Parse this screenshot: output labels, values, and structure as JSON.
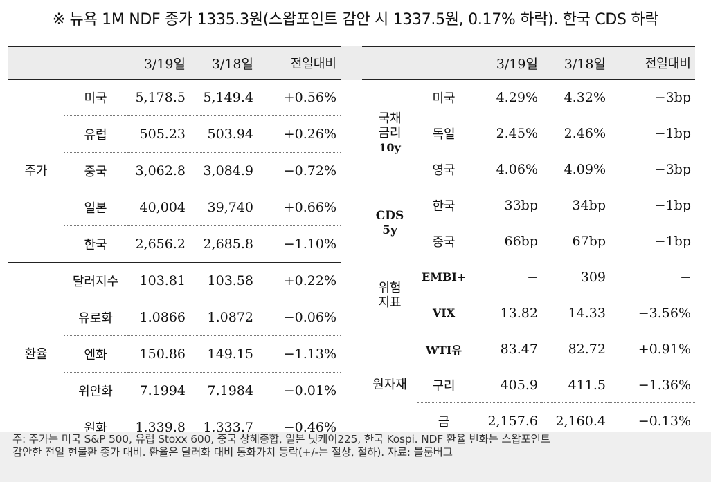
{
  "title": "※ 뉴욕 1M NDF 종가 1335.3원(스왑포인트 감안 시 1337.5원, 0.17% 하락). 한국 CDS 하락",
  "header": {
    "col1": "3/19일",
    "col2": "3/18일",
    "col3": "전일대비"
  },
  "left": {
    "stocks": {
      "label": "주가",
      "rows": [
        {
          "name": "미국",
          "d1": "5,178.5",
          "d2": "5,149.4",
          "chg": "+0.56%"
        },
        {
          "name": "유럽",
          "d1": "505.23",
          "d2": "503.94",
          "chg": "+0.26%"
        },
        {
          "name": "중국",
          "d1": "3,062.8",
          "d2": "3,084.9",
          "chg": "−0.72%"
        },
        {
          "name": "일본",
          "d1": "40,004",
          "d2": "39,740",
          "chg": "+0.66%"
        },
        {
          "name": "한국",
          "d1": "2,656.2",
          "d2": "2,685.8",
          "chg": "−1.10%"
        }
      ]
    },
    "fx": {
      "label": "환율",
      "rows": [
        {
          "name": "달러지수",
          "d1": "103.81",
          "d2": "103.58",
          "chg": "+0.22%"
        },
        {
          "name": "유로화",
          "d1": "1.0866",
          "d2": "1.0872",
          "chg": "−0.06%"
        },
        {
          "name": "엔화",
          "d1": "150.86",
          "d2": "149.15",
          "chg": "−1.13%"
        },
        {
          "name": "위안화",
          "d1": "7.1994",
          "d2": "7.1984",
          "chg": "−0.01%"
        },
        {
          "name": "원화",
          "d1": "1,339.8",
          "d2": "1,333.7",
          "chg": "−0.46%"
        }
      ]
    }
  },
  "right": {
    "bond": {
      "label_lines": [
        "국채",
        "금리",
        "10y"
      ],
      "rows": [
        {
          "name": "미국",
          "d1": "4.29%",
          "d2": "4.32%",
          "chg": "−3bp"
        },
        {
          "name": "독일",
          "d1": "2.45%",
          "d2": "2.46%",
          "chg": "−1bp"
        },
        {
          "name": "영국",
          "d1": "4.06%",
          "d2": "4.09%",
          "chg": "−3bp"
        }
      ]
    },
    "cds": {
      "label_lines": [
        "CDS",
        "5y"
      ],
      "rows": [
        {
          "name": "한국",
          "d1": "33bp",
          "d2": "34bp",
          "chg": "−1bp"
        },
        {
          "name": "중국",
          "d1": "66bp",
          "d2": "67bp",
          "chg": "−1bp"
        }
      ]
    },
    "risk": {
      "label_lines": [
        "위험",
        "지표"
      ],
      "rows": [
        {
          "name": "EMBI+",
          "d1": "−",
          "d2": "309",
          "chg": "−"
        },
        {
          "name": "VIX",
          "d1": "13.82",
          "d2": "14.33",
          "chg": "−3.56%"
        }
      ]
    },
    "commodity": {
      "label": "원자재",
      "rows": [
        {
          "name": "WTI유",
          "d1": "83.47",
          "d2": "82.72",
          "chg": "+0.91%"
        },
        {
          "name": "구리",
          "d1": "405.9",
          "d2": "411.5",
          "chg": "−1.36%"
        },
        {
          "name": "금",
          "d1": "2,157.6",
          "d2": "2,160.4",
          "chg": "−0.13%"
        }
      ]
    }
  },
  "footnote": {
    "line1": "주: 주가는 미국 S&P 500, 유럽 Stoxx 600, 중국 상해종합, 일본 닛케이225, 한국 Kospi. NDF 환율 변화는 스왑포인트",
    "line2": "감안한 전일 현물환 종가 대비. 환율은 달러화 대비 통화가치 등락(+/-는 절상, 절하). 자료: 블룸버그"
  }
}
